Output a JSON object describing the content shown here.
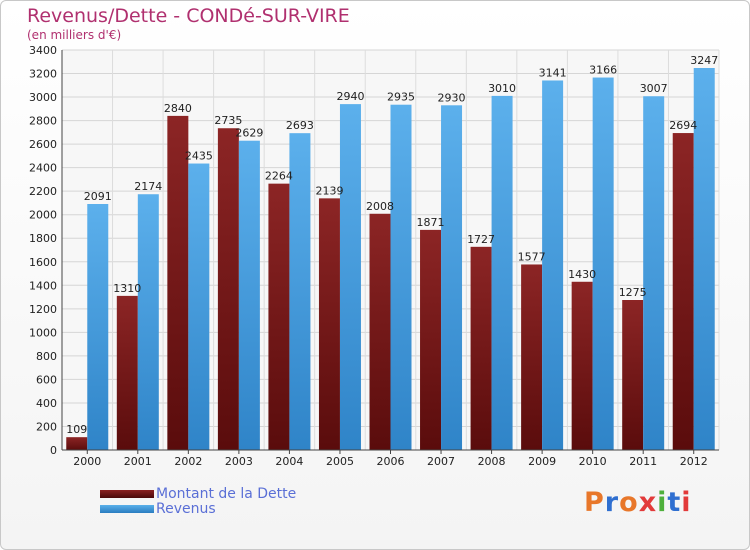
{
  "header": {
    "title": "Revenus/Dette - CONDé-SUR-VIRE",
    "subtitle": "(en milliers d'€)"
  },
  "legend": {
    "items": [
      {
        "label": "Montant de la Dette",
        "color": "#7a1818"
      },
      {
        "label": "Revenus",
        "color": "#3c98dc"
      }
    ]
  },
  "logo": {
    "text": "Proxiti",
    "colors": [
      "#e8772a",
      "#2f6fd0",
      "#e8772a",
      "#e23a3a",
      "#4fb03c",
      "#2f6fd0",
      "#e23a3a"
    ]
  },
  "chart_data": {
    "type": "bar",
    "title": "Revenus/Dette - CONDé-SUR-VIRE",
    "subtitle": "(en milliers d'€)",
    "categories": [
      "2000",
      "2001",
      "2002",
      "2003",
      "2004",
      "2005",
      "2006",
      "2007",
      "2008",
      "2009",
      "2010",
      "2011",
      "2012"
    ],
    "series": [
      {
        "name": "Montant de la Dette",
        "color": "#7a1818",
        "values": [
          109,
          1310,
          2840,
          2735,
          2264,
          2139,
          2008,
          1871,
          1727,
          1577,
          1430,
          1275,
          2694
        ],
        "labels": [
          "109",
          "1310",
          "2840",
          "2735",
          "2264",
          "2139",
          "2008",
          "1871",
          "1727",
          "1577",
          "1430",
          "1275",
          "2694"
        ]
      },
      {
        "name": "Revenus",
        "color": "#3c98dc",
        "values": [
          2091,
          2174,
          2435,
          2629,
          2693,
          2940,
          2935,
          2930,
          3010,
          3141,
          3166,
          3007,
          3247
        ],
        "labels": [
          "2091",
          "2174",
          "2435",
          "2629",
          "2693",
          "2940",
          "2935",
          "2930",
          "3010",
          "3141",
          "3166",
          "3007",
          "3247"
        ]
      }
    ],
    "yticks": [
      0,
      200,
      400,
      600,
      800,
      1000,
      1200,
      1400,
      1600,
      1800,
      2000,
      2200,
      2400,
      2600,
      2800,
      3000,
      3200,
      3400
    ],
    "ylim": [
      0,
      3400
    ],
    "xlabel": "",
    "ylabel": "",
    "grid": true,
    "legend_position": "bottom-left"
  }
}
